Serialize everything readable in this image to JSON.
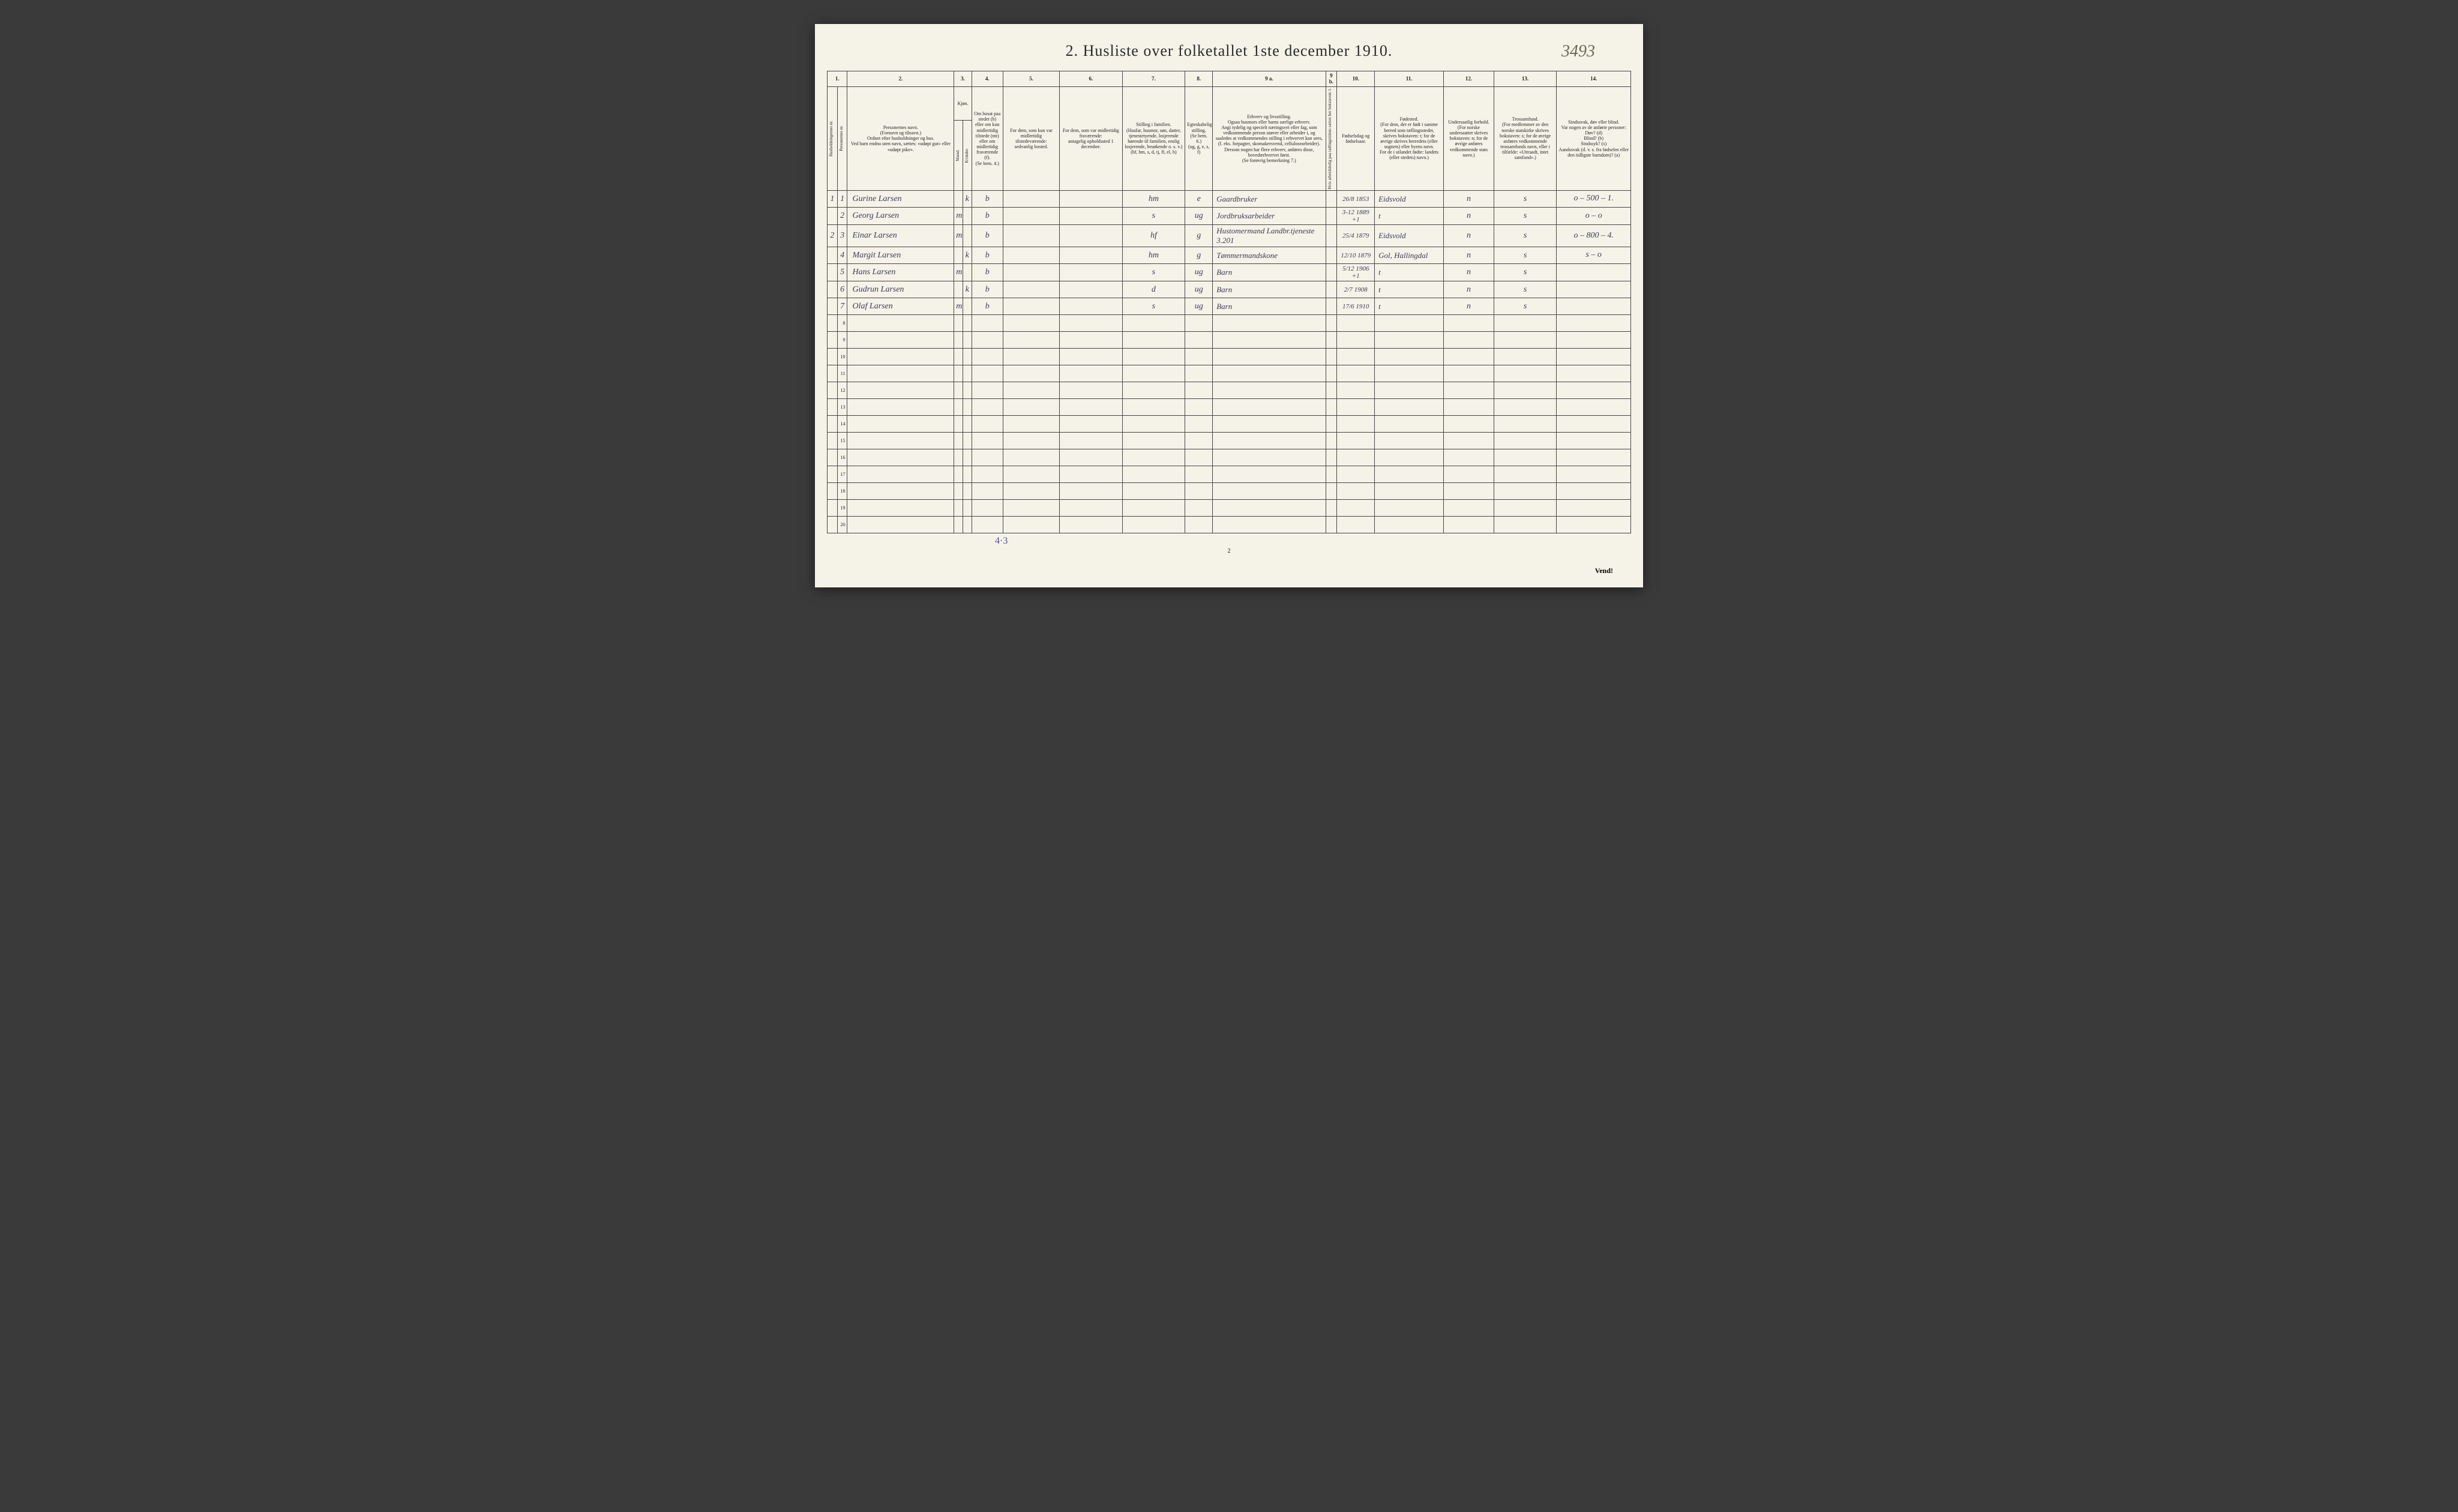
{
  "title": "2.  Husliste over folketallet 1ste december 1910.",
  "pageNumberTop": "3493",
  "footerTally": "4·3",
  "pageBottomNum": "2",
  "vend": "Vend!",
  "columnNumbers": [
    "1.",
    "2.",
    "3.",
    "4.",
    "5.",
    "6.",
    "7.",
    "8.",
    "9 a.",
    "9 b.",
    "10.",
    "11.",
    "12.",
    "13.",
    "14."
  ],
  "headers": {
    "c1a": "Husholdningernes nr.",
    "c1b": "Personernes nr.",
    "c2": "Personernes navn.\n(Fornavn og tilnavn.)\nOrdnet efter husholdninger og hus.\nVed barn endnu uten navn, sættes: «udøpt gut» eller «udøpt pike».",
    "c3": "Kjøn.",
    "c3a": "Mænd.",
    "c3b": "Kvinder.",
    "c4": "Om bosat paa stedet (b) eller om kun midlertidig tilstede (mt) eller om midlertidig fraværende (f).\n(Se bem. 4.)",
    "c5": "For dem, som kun var midlertidig tilstedeværende:\nsedvanlig bosted.",
    "c6": "For dem, som var midlertidig fraværende:\nantagelig opholdssted 1 december.",
    "c7": "Stilling i familien.\n(Husfar, husmor, søn, datter, tjenestetyende, losjerende hørende til familien, enslig losjerende, besøkende o. s. v.)\n(hf, hm, s, d, tj, fl, el, b)",
    "c8": "Egteskabelig stilling.\n(Se bem. 6.)\n(ug, g, e, s, f)",
    "c9a": "Erhverv og livsstilling.\nOgsaa husmors eller barns særlige erhverv.\nAngi tydelig og specielt næringsvei eller fag, som vedkommende person utøver eller arbeider i, og saaledes at vedkommendes stilling i erhvervet kan sees, (f. eks. forpagter, skomakersvend, cellulosearbeider). Dersom nogen har flere erhverv, anføres disse, hovedærhvervet først.\n(Se forøvrig bemerkning 7.)",
    "c9b": "Hvis arbeidsledig paa tællingstidens sættes her bokstaven: l.",
    "c10": "Fødselsdag og fødselsaar.",
    "c11": "Fødested.\n(For dem, der er født i samme herred som tællingsstedet, skrives bokstaven: t; for de øvrige skrives herredets (eller sognets) eller byens navn.\nFor de i utlandet fødte: landets (eller stedets) navn.)",
    "c12": "Undersaatlig forhold.\n(For norske undersaatter skrives bokstaven: n; for de øvrige anføres vedkommende stats navn.)",
    "c13": "Trossamfund.\n(For medlemmer av den norske statskirke skrives bokstaven: s; for de øvrige anføres vedkommende trossamfunds navn, eller i tilfælde: «Uttraadt, intet samfund».)",
    "c14": "Sindssvak, døv eller blind.\nVar nogen av de anførte personer:\nDøv?        (d)\nBlind?      (b)\nSindssyk?   (s)\nAandssvak (d. v. s. fra fødselen eller den tidligste barndom)? (a)"
  },
  "marginNotes": [
    "o – 500 – 1.",
    "o –     o",
    "o – 800 – 4.",
    "s –     o"
  ],
  "rows": [
    {
      "hh": "1",
      "pn": "1",
      "name": "Gurine Larsen",
      "m": "",
      "k": "k",
      "res": "b",
      "away": "",
      "abs": "",
      "fam": "hm",
      "mar": "e",
      "occ": "Gaardbruker",
      "led": "",
      "dob": "26/8 1853",
      "birthplace": "Eidsvold",
      "nat": "n",
      "rel": "s",
      "dis": ""
    },
    {
      "hh": "",
      "pn": "2",
      "name": "Georg Larsen",
      "m": "m",
      "k": "",
      "res": "b",
      "away": "",
      "abs": "",
      "fam": "s",
      "mar": "ug",
      "occ": "Jordbruksarbeider",
      "led": "",
      "dob": "3-12 1889 +1",
      "birthplace": "t",
      "nat": "n",
      "rel": "s",
      "dis": ""
    },
    {
      "hh": "2",
      "pn": "3",
      "name": "Einar Larsen",
      "m": "m",
      "k": "",
      "res": "b",
      "away": "",
      "abs": "",
      "fam": "hf",
      "mar": "g",
      "occ": "Hustomermand  Landbr.tjeneste 3.201",
      "led": "",
      "dob": "25/4 1879",
      "birthplace": "Eidsvold",
      "nat": "n",
      "rel": "s",
      "dis": ""
    },
    {
      "hh": "",
      "pn": "4",
      "name": "Margit Larsen",
      "m": "",
      "k": "k",
      "res": "b",
      "away": "",
      "abs": "",
      "fam": "hm",
      "mar": "g",
      "occ": "Tømmermandskone",
      "led": "",
      "dob": "12/10 1879",
      "birthplace": "Gol, Hallingdal",
      "nat": "n",
      "rel": "s",
      "dis": ""
    },
    {
      "hh": "",
      "pn": "5",
      "name": "Hans Larsen",
      "m": "m",
      "k": "",
      "res": "b",
      "away": "",
      "abs": "",
      "fam": "s",
      "mar": "ug",
      "occ": "Barn",
      "led": "",
      "dob": "5/12 1906 +1",
      "birthplace": "t",
      "nat": "n",
      "rel": "s",
      "dis": ""
    },
    {
      "hh": "",
      "pn": "6",
      "name": "Gudrun Larsen",
      "m": "",
      "k": "k",
      "res": "b",
      "away": "",
      "abs": "",
      "fam": "d",
      "mar": "ug",
      "occ": "Barn",
      "led": "",
      "dob": "2/7 1908",
      "birthplace": "t",
      "nat": "n",
      "rel": "s",
      "dis": ""
    },
    {
      "hh": "",
      "pn": "7",
      "name": "Olaf Larsen",
      "m": "m",
      "k": "",
      "res": "b",
      "away": "",
      "abs": "",
      "fam": "s",
      "mar": "ug",
      "occ": "Barn",
      "led": "",
      "dob": "17/6 1910",
      "birthplace": "t",
      "nat": "n",
      "rel": "s",
      "dis": ""
    }
  ],
  "emptyRows": [
    8,
    9,
    10,
    11,
    12,
    13,
    14,
    15,
    16,
    17,
    18,
    19,
    20
  ],
  "colWidths": {
    "c1a": 16,
    "c1b": 16,
    "c2": 170,
    "c3a": 14,
    "c3b": 14,
    "c4": 50,
    "c5": 90,
    "c6": 100,
    "c7": 100,
    "c8": 44,
    "c9a": 180,
    "c9b": 18,
    "c10": 60,
    "c11": 110,
    "c12": 80,
    "c13": 100,
    "c14": 118
  },
  "style": {
    "pageBg": "#f5f3e8",
    "bodyBg": "#3a3a3a",
    "borderColor": "#444",
    "inkColor": "#3a3a5a",
    "printColor": "#222",
    "titleFontSize": 26,
    "headerFontSize": 8,
    "dataFontSize": 14
  }
}
